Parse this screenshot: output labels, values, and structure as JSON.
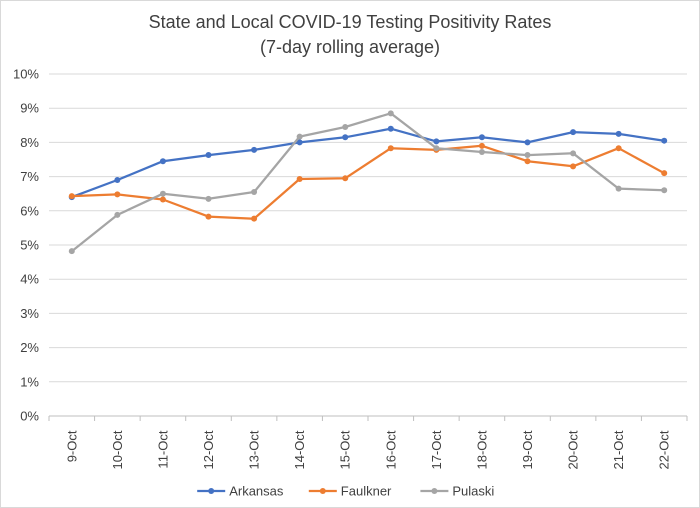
{
  "chart_data": {
    "type": "line",
    "title": "State and Local COVID-19 Testing Positivity Rates",
    "subtitle": "(7-day rolling average)",
    "xlabel": "",
    "ylabel": "",
    "categories": [
      "9-Oct",
      "10-Oct",
      "11-Oct",
      "12-Oct",
      "13-Oct",
      "14-Oct",
      "15-Oct",
      "16-Oct",
      "17-Oct",
      "18-Oct",
      "19-Oct",
      "20-Oct",
      "21-Oct",
      "22-Oct"
    ],
    "ylim": [
      0,
      10
    ],
    "yticks": [
      "0%",
      "1%",
      "2%",
      "3%",
      "4%",
      "5%",
      "6%",
      "7%",
      "8%",
      "9%",
      "10%"
    ],
    "grid": true,
    "legend_position": "bottom",
    "series": [
      {
        "name": "Arkansas",
        "color": "#4472C4",
        "values": [
          6.4,
          6.9,
          7.45,
          7.63,
          7.78,
          8.0,
          8.15,
          8.4,
          8.03,
          8.15,
          8.0,
          8.3,
          8.25,
          8.05
        ]
      },
      {
        "name": "Faulkner",
        "color": "#ED7D31",
        "values": [
          6.43,
          6.48,
          6.33,
          5.83,
          5.77,
          6.93,
          6.95,
          7.83,
          7.78,
          7.9,
          7.45,
          7.3,
          7.83,
          7.1
        ]
      },
      {
        "name": "Pulaski",
        "color": "#A5A5A5",
        "values": [
          4.82,
          5.88,
          6.5,
          6.35,
          6.55,
          8.17,
          8.45,
          8.85,
          7.83,
          7.72,
          7.63,
          7.68,
          6.65,
          6.6
        ]
      }
    ]
  }
}
